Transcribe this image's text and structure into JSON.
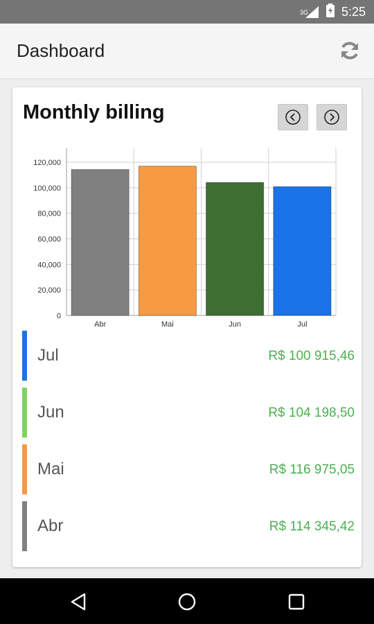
{
  "status_bar": {
    "time": "5:25",
    "network_label": "3G",
    "icons": [
      "signal-icon",
      "battery-icon"
    ]
  },
  "app_bar": {
    "title": "Dashboard",
    "refresh_icon": "refresh-icon"
  },
  "card": {
    "title": "Monthly billing",
    "prev_icon": "chevron-left-icon",
    "next_icon": "chevron-right-icon"
  },
  "chart_data": {
    "type": "bar",
    "categories": [
      "Abr",
      "Mai",
      "Jun",
      "Jul"
    ],
    "values": [
      114345.42,
      116975.05,
      104198.5,
      100915.46
    ],
    "colors": [
      "#808080",
      "#f89a42",
      "#3d6e32",
      "#1a73e8"
    ],
    "ylim": [
      0,
      120000
    ],
    "yticks": [
      "0",
      "20,000",
      "40,000",
      "60,000",
      "80,000",
      "100,000",
      "120,000"
    ],
    "grid": true
  },
  "legend": [
    {
      "month": "Jul",
      "amount": "R$ 100 915,46",
      "color": "#1a73e8"
    },
    {
      "month": "Jun",
      "amount": "R$ 104 198,50",
      "color": "#7ed35e"
    },
    {
      "month": "Mai",
      "amount": "R$ 116 975,05",
      "color": "#f89a42"
    },
    {
      "month": "Abr",
      "amount": "R$ 114 345,42",
      "color": "#808080"
    }
  ],
  "nav_bar": {
    "back_icon": "back-icon",
    "home_icon": "home-icon",
    "recents_icon": "recents-icon"
  }
}
